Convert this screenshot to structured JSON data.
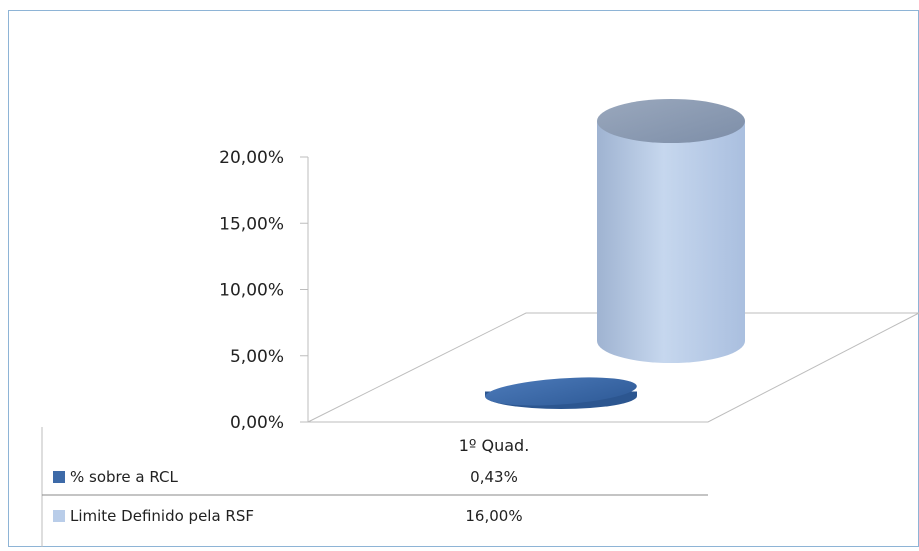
{
  "chart_data": {
    "type": "bar",
    "style": "3d-cylinder",
    "categories": [
      "1º Quad."
    ],
    "series": [
      {
        "name": "% sobre a RCL",
        "values": [
          0.43
        ],
        "value_labels": [
          "0,43%"
        ],
        "color": "#3d6aa8"
      },
      {
        "name": "Limite Definido pela RSF",
        "values": [
          16.0
        ],
        "value_labels": [
          "16,00%"
        ],
        "color": "#b9cde9"
      }
    ],
    "yticks": [
      "0,00%",
      "5,00%",
      "10,00%",
      "15,00%",
      "20,00%"
    ],
    "ylim": [
      0,
      20
    ],
    "legend": "data-table-bottom",
    "grid": false
  }
}
